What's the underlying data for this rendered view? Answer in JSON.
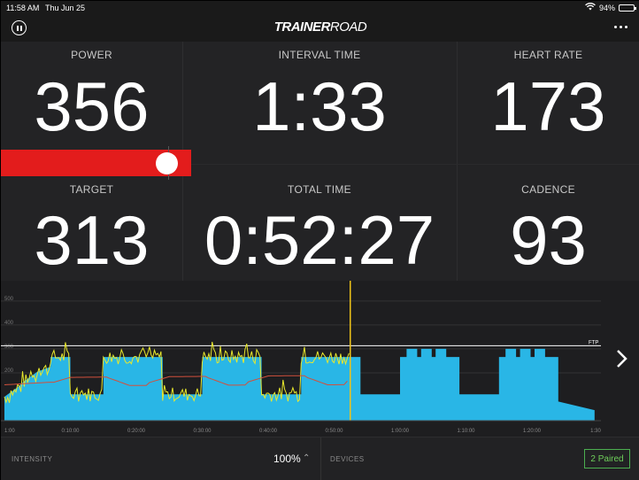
{
  "status": {
    "time": "11:58 AM",
    "date": "Thu Jun 25",
    "battery": "94%",
    "battery_level": 0.94
  },
  "header": {
    "logo_bold": "TRAINER",
    "logo_light": "ROAD"
  },
  "metrics": {
    "power": {
      "label": "POWER",
      "value": "356"
    },
    "interval_time": {
      "label": "INTERVAL TIME",
      "value": "1:33"
    },
    "heart_rate": {
      "label": "HEART RATE",
      "value": "173"
    },
    "target": {
      "label": "TARGET",
      "value": "313"
    },
    "total_time": {
      "label": "TOTAL TIME",
      "value": "0:52:27"
    },
    "cadence": {
      "label": "CADENCE",
      "value": "93"
    }
  },
  "chart_data": {
    "type": "area",
    "y_ticks": [
      "500",
      "400",
      "300",
      "200"
    ],
    "x_ticks": [
      "1:00",
      "0:10:00",
      "0:20:00",
      "0:30:00",
      "0:40:00",
      "0:50:00",
      "1:00:00",
      "1:10:00",
      "1:20:00",
      "1:30"
    ],
    "ftp_label": "FTP",
    "ftp": 313,
    "current_time_min": 52.45,
    "colors": {
      "target_area": "#29b6e6",
      "power_line": "#e8e82c",
      "heart_line": "#d2503c",
      "ftp_line": "#ffffff",
      "cursor": "#f0c419"
    }
  },
  "bottom": {
    "intensity_label": "INTENSITY",
    "intensity_value": "100%",
    "devices_label": "DEVICES",
    "paired_label": "2 Paired"
  }
}
